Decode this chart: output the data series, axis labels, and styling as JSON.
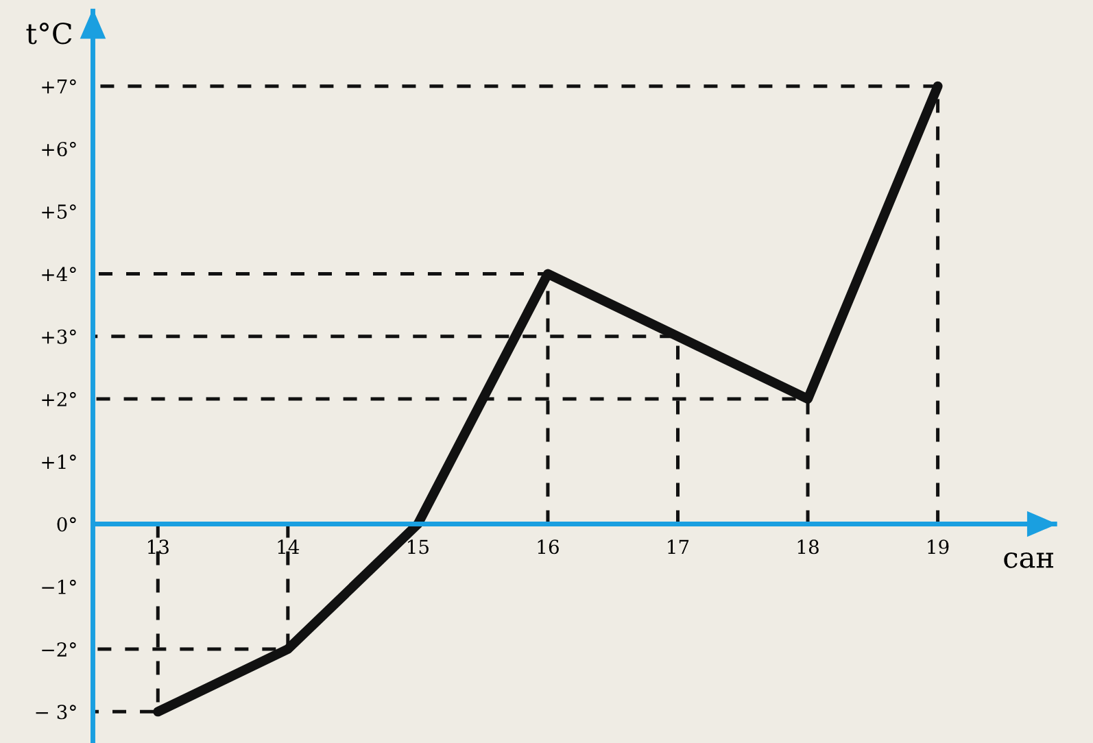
{
  "chart_data": {
    "type": "line",
    "xlabel": "сан",
    "ylabel": "t°C",
    "x": [
      13,
      14,
      15,
      16,
      17,
      18,
      19
    ],
    "series": [
      {
        "color": "#111111",
        "values": [
          -3,
          -2,
          0,
          4,
          3,
          2,
          7
        ]
      },
      {
        "color": "#111111",
        "line_style": "dashed",
        "x": [
          12.5,
          13,
          13
        ],
        "values": [
          -3,
          -3,
          0
        ]
      },
      {
        "color": "#111111",
        "line_style": "dashed",
        "x": [
          12.5,
          14,
          14
        ],
        "values": [
          -2,
          -2,
          0
        ]
      },
      {
        "color": "#111111",
        "line_style": "dashed",
        "x": [
          12.5,
          16,
          16
        ],
        "values": [
          4,
          4,
          0
        ]
      },
      {
        "color": "#111111",
        "line_style": "dashed",
        "x": [
          12.5,
          17,
          17
        ],
        "values": [
          3,
          3,
          0
        ]
      },
      {
        "color": "#111111",
        "line_style": "dashed",
        "x": [
          12.5,
          18,
          18
        ],
        "values": [
          2,
          2,
          0
        ]
      },
      {
        "color": "#111111",
        "line_style": "dashed",
        "x": [
          12.5,
          19,
          19
        ],
        "values": [
          7,
          7,
          0
        ]
      }
    ],
    "xlim": [
      12.5,
      19.9
    ],
    "ylim": [
      -3.5,
      8.2
    ],
    "xticks": [
      13,
      14,
      15,
      16,
      17,
      18,
      19
    ],
    "yticks": [
      {
        "value": -3,
        "label": "− 3°"
      },
      {
        "value": -2,
        "label": "−2°"
      },
      {
        "value": -1,
        "label": "−1°"
      },
      {
        "value": 0,
        "label": "0°"
      },
      {
        "value": 1,
        "label": "+1°"
      },
      {
        "value": 2,
        "label": "+2°"
      },
      {
        "value": 3,
        "label": "+3°"
      },
      {
        "value": 4,
        "label": "+4°"
      },
      {
        "value": 5,
        "label": "+5°"
      },
      {
        "value": 6,
        "label": "+6°"
      },
      {
        "value": 7,
        "label": "+7°"
      }
    ],
    "grid": false,
    "line_style": "solid"
  }
}
